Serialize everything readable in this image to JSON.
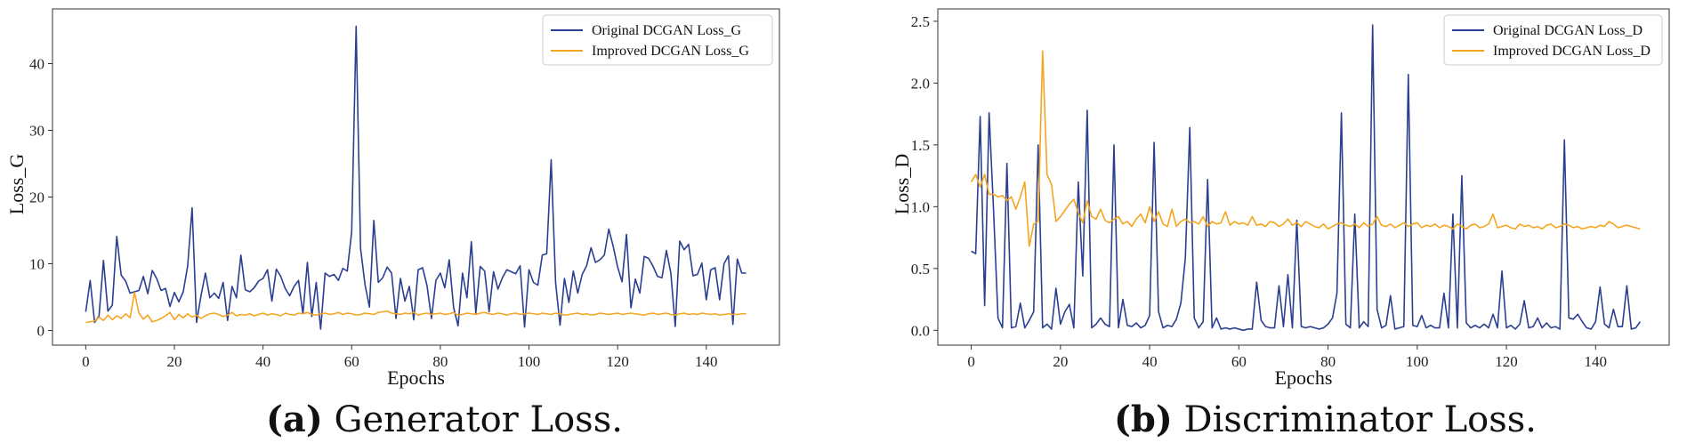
{
  "colors": {
    "original": "#2b3f91",
    "improved": "#f5a51f",
    "axis": "#333333"
  },
  "captions": [
    {
      "tag": "(a)",
      "text": "Generator Loss."
    },
    {
      "tag": "(b)",
      "text": "Discriminator Loss."
    }
  ],
  "chart_data": [
    {
      "type": "line",
      "title": "",
      "xlabel": "Epochs",
      "ylabel": "Loss_G",
      "xlim": [
        -7.5,
        156.5
      ],
      "ylim": [
        -2.2,
        48.2
      ],
      "xticks": [
        0,
        20,
        40,
        60,
        80,
        100,
        120,
        140
      ],
      "yticks": [
        0,
        10,
        20,
        30,
        40
      ],
      "legend_position": "top-right",
      "series": [
        {
          "name": "Original DCGAN Loss_G",
          "color_key": "original",
          "values": [
            2.8,
            7.5,
            1.2,
            2.2,
            10.5,
            2.9,
            3.8,
            14.1,
            8.3,
            7.4,
            5.6,
            5.8,
            6.0,
            8.1,
            5.5,
            9.0,
            7.8,
            6.0,
            6.3,
            3.6,
            5.7,
            4.3,
            5.8,
            9.7,
            18.4,
            1.2,
            5.2,
            8.6,
            4.9,
            5.6,
            4.8,
            7.2,
            1.5,
            6.6,
            4.9,
            11.3,
            6.1,
            5.8,
            6.4,
            7.4,
            7.8,
            9.1,
            4.4,
            9.2,
            8.1,
            6.3,
            5.2,
            6.6,
            7.5,
            2.5,
            10.2,
            2.1,
            7.2,
            0.2,
            8.6,
            8.1,
            8.4,
            7.5,
            9.3,
            8.9,
            14.8,
            45.6,
            12.3,
            6.9,
            3.5,
            16.5,
            7.2,
            7.9,
            9.5,
            8.6,
            1.8,
            7.8,
            4.4,
            6.6,
            1.6,
            9.1,
            9.4,
            6.7,
            1.8,
            7.5,
            8.6,
            6.4,
            10.6,
            3.4,
            0.7,
            8.6,
            4.9,
            13.3,
            2.6,
            9.6,
            8.9,
            2.8,
            8.8,
            6.2,
            7.9,
            9.1,
            8.8,
            8.5,
            9.7,
            0.5,
            9.1,
            7.2,
            6.8,
            11.3,
            11.5,
            25.6,
            7.2,
            0.8,
            7.8,
            4.2,
            8.9,
            5.6,
            8.4,
            9.7,
            12.4,
            10.2,
            10.6,
            11.3,
            15.2,
            12.6,
            9.5,
            7.3,
            14.4,
            3.4,
            7.7,
            5.6,
            11.1,
            10.8,
            9.6,
            8.1,
            7.9,
            12.0,
            8.6,
            0.6,
            13.4,
            12.1,
            12.9,
            8.2,
            8.4,
            10.1,
            4.6,
            9.1,
            9.4,
            4.6,
            10.0,
            11.2,
            0.9,
            10.7,
            8.6,
            8.6
          ]
        },
        {
          "name": "Improved DCGAN Loss_G",
          "color_key": "improved",
          "values": [
            1.2,
            1.3,
            1.4,
            2.0,
            1.5,
            2.3,
            1.6,
            2.2,
            1.8,
            2.5,
            1.9,
            5.7,
            2.6,
            1.7,
            2.3,
            1.3,
            1.5,
            1.8,
            2.2,
            2.7,
            1.6,
            2.4,
            1.9,
            2.5,
            2.0,
            2.3,
            1.8,
            2.2,
            2.5,
            2.6,
            2.4,
            2.1,
            2.3,
            2.7,
            2.2,
            2.4,
            2.3,
            2.5,
            2.2,
            2.4,
            2.6,
            2.3,
            2.5,
            2.4,
            2.2,
            2.6,
            2.4,
            2.3,
            2.6,
            2.5,
            2.7,
            2.4,
            2.3,
            2.5,
            2.6,
            2.4,
            2.5,
            2.7,
            2.4,
            2.6,
            2.5,
            2.3,
            2.4,
            2.6,
            2.5,
            2.4,
            2.7,
            2.8,
            2.9,
            2.6,
            2.5,
            2.4,
            2.6,
            2.5,
            2.7,
            2.3,
            2.5,
            2.6,
            2.4,
            2.5,
            2.6,
            2.4,
            2.5,
            2.7,
            2.3,
            2.4,
            2.6,
            2.5,
            2.4,
            2.6,
            2.7,
            2.5,
            2.4,
            2.6,
            2.5,
            2.3,
            2.5,
            2.6,
            2.4,
            2.5,
            2.6,
            2.5,
            2.4,
            2.6,
            2.5,
            2.4,
            2.6,
            2.5,
            2.3,
            2.4,
            2.5,
            2.6,
            2.4,
            2.5,
            2.3,
            2.4,
            2.6,
            2.5,
            2.4,
            2.5,
            2.6,
            2.4,
            2.5,
            2.6,
            2.5,
            2.4,
            2.3,
            2.5,
            2.6,
            2.4,
            2.5,
            2.6,
            2.4,
            2.3,
            2.5,
            2.6,
            2.4,
            2.5,
            2.4,
            2.6,
            2.5,
            2.4,
            2.5,
            2.3,
            2.4,
            2.5,
            2.4,
            2.4,
            2.5,
            2.5
          ]
        }
      ]
    },
    {
      "type": "line",
      "title": "",
      "xlabel": "Epochs",
      "ylabel": "Loss_D",
      "xlim": [
        -7.5,
        156.5
      ],
      "ylim": [
        -0.12,
        2.6
      ],
      "xticks": [
        0,
        20,
        40,
        60,
        80,
        100,
        120,
        140
      ],
      "yticks": [
        0.0,
        0.5,
        1.0,
        1.5,
        2.0,
        2.5
      ],
      "legend_position": "top-right",
      "series": [
        {
          "name": "Original DCGAN Loss_D",
          "color_key": "original",
          "values": [
            0.64,
            0.62,
            1.73,
            0.2,
            1.76,
            0.97,
            0.1,
            0.02,
            1.35,
            0.02,
            0.03,
            0.22,
            0.02,
            0.08,
            0.15,
            1.5,
            0.02,
            0.05,
            0.01,
            0.34,
            0.05,
            0.15,
            0.21,
            0.02,
            1.2,
            0.44,
            1.78,
            0.02,
            0.05,
            0.1,
            0.05,
            0.03,
            1.5,
            0.02,
            0.25,
            0.04,
            0.03,
            0.06,
            0.02,
            0.04,
            0.12,
            1.52,
            0.15,
            0.02,
            0.04,
            0.03,
            0.09,
            0.22,
            0.58,
            1.64,
            0.1,
            0.02,
            0.07,
            1.22,
            0.02,
            0.1,
            0.01,
            0.02,
            0.01,
            0.02,
            0.01,
            0.0,
            0.01,
            0.01,
            0.39,
            0.08,
            0.03,
            0.02,
            0.02,
            0.36,
            0.03,
            0.45,
            0.02,
            0.89,
            0.03,
            0.02,
            0.03,
            0.02,
            0.01,
            0.02,
            0.05,
            0.1,
            0.3,
            1.76,
            0.05,
            0.02,
            0.94,
            0.02,
            0.07,
            0.03,
            2.47,
            0.17,
            0.02,
            0.04,
            0.28,
            0.01,
            0.02,
            0.03,
            2.07,
            0.04,
            0.03,
            0.12,
            0.02,
            0.04,
            0.02,
            0.02,
            0.3,
            0.02,
            0.94,
            0.02,
            1.25,
            0.06,
            0.02,
            0.04,
            0.02,
            0.05,
            0.02,
            0.13,
            0.02,
            0.48,
            0.02,
            0.04,
            0.01,
            0.05,
            0.24,
            0.02,
            0.03,
            0.1,
            0.02,
            0.06,
            0.02,
            0.03,
            0.01,
            1.54,
            0.1,
            0.09,
            0.13,
            0.07,
            0.02,
            0.01,
            0.07,
            0.35,
            0.05,
            0.02,
            0.17,
            0.03,
            0.03,
            0.36,
            0.01,
            0.02,
            0.07
          ]
        },
        {
          "name": "Improved DCGAN Loss_D",
          "color_key": "improved",
          "values": [
            1.2,
            1.26,
            1.16,
            1.26,
            1.1,
            1.1,
            1.08,
            1.09,
            1.05,
            1.08,
            0.98,
            1.08,
            1.2,
            0.68,
            0.86,
            0.88,
            2.26,
            1.26,
            1.18,
            0.88,
            0.92,
            0.97,
            1.02,
            1.06,
            0.95,
            0.87,
            1.05,
            0.92,
            0.9,
            0.98,
            0.89,
            0.87,
            0.9,
            0.92,
            0.86,
            0.88,
            0.84,
            0.9,
            0.94,
            0.87,
            1.0,
            0.88,
            0.96,
            0.86,
            0.84,
            0.98,
            0.84,
            0.88,
            0.9,
            0.87,
            0.88,
            0.86,
            0.92,
            0.84,
            0.88,
            0.86,
            0.87,
            0.96,
            0.85,
            0.88,
            0.86,
            0.87,
            0.85,
            0.92,
            0.85,
            0.86,
            0.84,
            0.88,
            0.87,
            0.84,
            0.86,
            0.9,
            0.85,
            0.87,
            0.84,
            0.88,
            0.86,
            0.84,
            0.83,
            0.86,
            0.82,
            0.84,
            0.86,
            0.87,
            0.85,
            0.84,
            0.86,
            0.83,
            0.87,
            0.84,
            0.86,
            0.92,
            0.85,
            0.84,
            0.86,
            0.83,
            0.85,
            0.87,
            0.84,
            0.86,
            0.87,
            0.83,
            0.85,
            0.84,
            0.86,
            0.83,
            0.85,
            0.84,
            0.82,
            0.86,
            0.84,
            0.82,
            0.85,
            0.86,
            0.83,
            0.84,
            0.86,
            0.94,
            0.83,
            0.84,
            0.85,
            0.83,
            0.82,
            0.86,
            0.84,
            0.85,
            0.83,
            0.84,
            0.82,
            0.85,
            0.86,
            0.83,
            0.84,
            0.86,
            0.85,
            0.83,
            0.84,
            0.82,
            0.83,
            0.84,
            0.83,
            0.85,
            0.84,
            0.88,
            0.86,
            0.83,
            0.84,
            0.85,
            0.84,
            0.83,
            0.82
          ]
        }
      ]
    }
  ]
}
